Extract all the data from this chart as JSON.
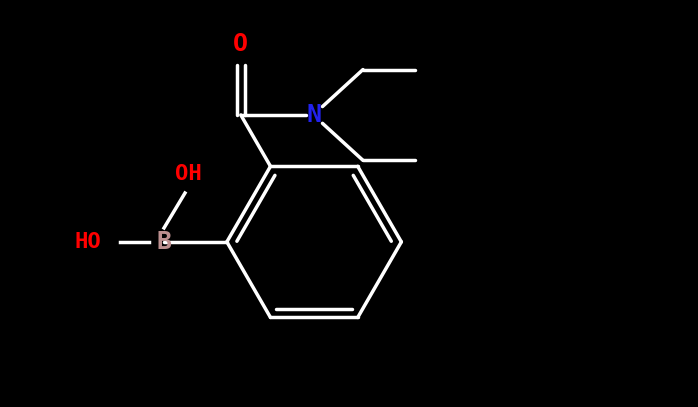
{
  "bg_color": "#000000",
  "bond_color": "#ffffff",
  "bond_width": 2.5,
  "atom_colors": {
    "B": "#bc8f8f",
    "O": "#ff0000",
    "N": "#2222ee",
    "C": "#ffffff"
  },
  "font_size": 16
}
